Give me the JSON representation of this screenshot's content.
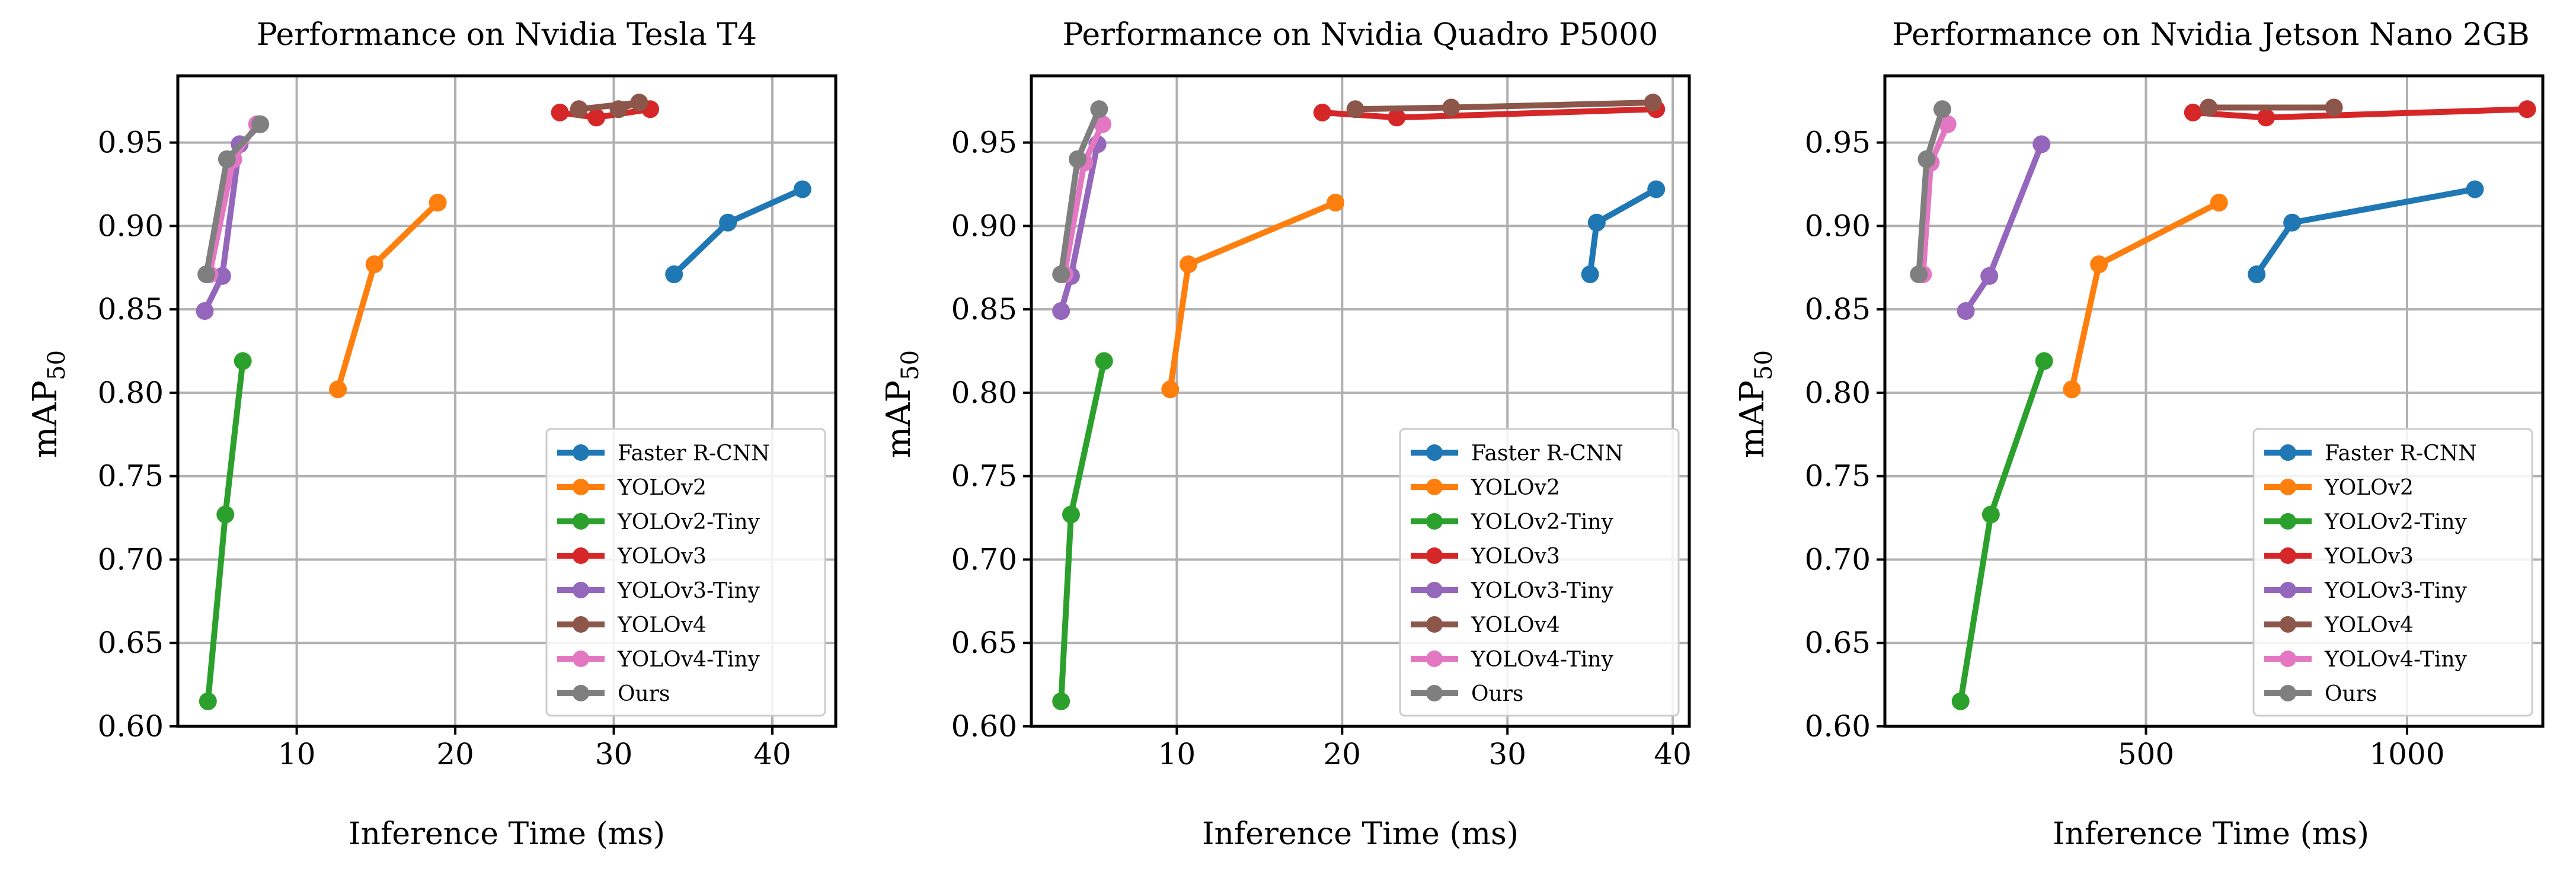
{
  "colors": {
    "Faster R-CNN": "#1f77b4",
    "YOLOv2": "#ff7f0e",
    "YOLOv2-Tiny": "#2ca02c",
    "YOLOv3": "#d62728",
    "YOLOv3-Tiny": "#9467bd",
    "YOLOv4": "#8c564b",
    "YOLOv4-Tiny": "#e377c2",
    "Ours": "#7f7f7f"
  },
  "chart_data": [
    {
      "type": "line",
      "title": "Performance on Nvidia Tesla T4",
      "xlabel": "Inference Time (ms)",
      "ylabel": "mAP",
      "ylabel_sub": "50",
      "xlim": [
        2.5,
        44
      ],
      "ylim": [
        0.6,
        0.99
      ],
      "xticks": [
        10,
        20,
        30,
        40
      ],
      "xtick_labels": [
        "10",
        "20",
        "30",
        "40"
      ],
      "yticks": [
        0.6,
        0.65,
        0.7,
        0.75,
        0.8,
        0.85,
        0.9,
        0.95
      ],
      "ytick_labels": [
        "0.60",
        "0.65",
        "0.70",
        "0.75",
        "0.80",
        "0.85",
        "0.90",
        "0.95"
      ],
      "grid": true,
      "legend": "lower right",
      "series": [
        {
          "name": "Faster R-CNN",
          "x": [
            33.8,
            37.2,
            41.9
          ],
          "y": [
            0.871,
            0.902,
            0.922
          ]
        },
        {
          "name": "YOLOv2",
          "x": [
            12.6,
            14.9,
            18.9
          ],
          "y": [
            0.802,
            0.877,
            0.914
          ]
        },
        {
          "name": "YOLOv2-Tiny",
          "x": [
            4.4,
            5.5,
            6.6
          ],
          "y": [
            0.615,
            0.727,
            0.819
          ]
        },
        {
          "name": "YOLOv3",
          "x": [
            26.6,
            28.9,
            32.3
          ],
          "y": [
            0.968,
            0.965,
            0.97
          ]
        },
        {
          "name": "YOLOv3-Tiny",
          "x": [
            4.2,
            5.3,
            6.4
          ],
          "y": [
            0.849,
            0.87,
            0.949
          ]
        },
        {
          "name": "YOLOv4",
          "x": [
            27.8,
            31.6,
            30.3
          ],
          "y": [
            0.97,
            0.974,
            0.97
          ]
        },
        {
          "name": "YOLOv4-Tiny",
          "x": [
            4.5,
            6.0,
            7.5
          ],
          "y": [
            0.871,
            0.94,
            0.961
          ]
        },
        {
          "name": "Ours",
          "x": [
            4.3,
            5.6,
            7.7
          ],
          "y": [
            0.871,
            0.94,
            0.961
          ]
        }
      ]
    },
    {
      "type": "line",
      "title": "Performance on Nvidia Quadro P5000",
      "xlabel": "Inference Time (ms)",
      "ylabel": "mAP",
      "ylabel_sub": "50",
      "xlim": [
        1.2,
        41
      ],
      "ylim": [
        0.6,
        0.99
      ],
      "xticks": [
        10,
        20,
        30,
        40
      ],
      "xtick_labels": [
        "10",
        "20",
        "30",
        "40"
      ],
      "yticks": [
        0.6,
        0.65,
        0.7,
        0.75,
        0.8,
        0.85,
        0.9,
        0.95
      ],
      "ytick_labels": [
        "0.60",
        "0.65",
        "0.70",
        "0.75",
        "0.80",
        "0.85",
        "0.90",
        "0.95"
      ],
      "grid": true,
      "legend": "lower right",
      "series": [
        {
          "name": "Faster R-CNN",
          "x": [
            35.0,
            35.4,
            39.0
          ],
          "y": [
            0.871,
            0.902,
            0.922
          ]
        },
        {
          "name": "YOLOv2",
          "x": [
            9.6,
            10.7,
            19.6
          ],
          "y": [
            0.802,
            0.877,
            0.914
          ]
        },
        {
          "name": "YOLOv2-Tiny",
          "x": [
            3.0,
            3.6,
            5.6
          ],
          "y": [
            0.615,
            0.727,
            0.819
          ]
        },
        {
          "name": "YOLOv3",
          "x": [
            18.8,
            23.3,
            39.0
          ],
          "y": [
            0.968,
            0.965,
            0.97
          ]
        },
        {
          "name": "YOLOv3-Tiny",
          "x": [
            3.0,
            3.6,
            5.2
          ],
          "y": [
            0.849,
            0.87,
            0.949
          ]
        },
        {
          "name": "YOLOv4",
          "x": [
            20.8,
            26.6,
            38.8
          ],
          "y": [
            0.97,
            0.971,
            0.974
          ]
        },
        {
          "name": "YOLOv4-Tiny",
          "x": [
            3.2,
            4.4,
            5.5
          ],
          "y": [
            0.871,
            0.938,
            0.961
          ]
        },
        {
          "name": "Ours",
          "x": [
            3.0,
            4.0,
            5.3
          ],
          "y": [
            0.871,
            0.94,
            0.97
          ]
        }
      ]
    },
    {
      "type": "line",
      "title": "Performance on Nvidia Jetson Nano 2GB",
      "xlabel": "Inference Time (ms)",
      "ylabel": "mAP",
      "ylabel_sub": "50",
      "xlim": [
        0,
        1260
      ],
      "ylim": [
        0.6,
        0.99
      ],
      "xticks": [
        500,
        1000
      ],
      "xtick_labels": [
        "500",
        "1000"
      ],
      "yticks": [
        0.6,
        0.65,
        0.7,
        0.75,
        0.8,
        0.85,
        0.9,
        0.95
      ],
      "ytick_labels": [
        "0.60",
        "0.65",
        "0.70",
        "0.75",
        "0.80",
        "0.85",
        "0.90",
        "0.95"
      ],
      "grid": true,
      "legend": "lower right",
      "series": [
        {
          "name": "Faster R-CNN",
          "x": [
            712,
            780,
            1130
          ],
          "y": [
            0.871,
            0.902,
            0.922
          ]
        },
        {
          "name": "YOLOv2",
          "x": [
            358,
            410,
            640
          ],
          "y": [
            0.802,
            0.877,
            0.914
          ]
        },
        {
          "name": "YOLOv2-Tiny",
          "x": [
            145,
            203,
            305
          ],
          "y": [
            0.615,
            0.727,
            0.819
          ]
        },
        {
          "name": "YOLOv3",
          "x": [
            590,
            730,
            1230
          ],
          "y": [
            0.968,
            0.965,
            0.97
          ]
        },
        {
          "name": "YOLOv3-Tiny",
          "x": [
            155,
            200,
            300
          ],
          "y": [
            0.849,
            0.87,
            0.949
          ]
        },
        {
          "name": "YOLOv4",
          "x": [
            620,
            860
          ],
          "y": [
            0.971,
            0.971
          ]
        },
        {
          "name": "YOLOv4-Tiny",
          "x": [
            73,
            88,
            120
          ],
          "y": [
            0.871,
            0.938,
            0.961
          ]
        },
        {
          "name": "Ours",
          "x": [
            65,
            80,
            110
          ],
          "y": [
            0.871,
            0.94,
            0.97
          ]
        }
      ]
    }
  ]
}
